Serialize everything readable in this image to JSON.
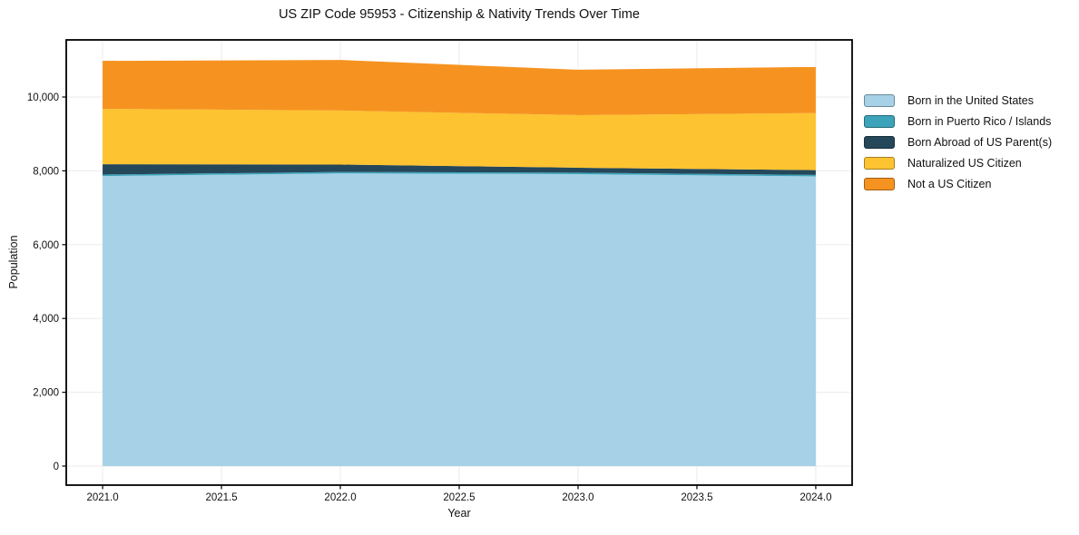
{
  "chart_data": {
    "type": "area",
    "stacked": true,
    "title": "US ZIP Code 95953 - Citizenship & Nativity Trends Over Time",
    "xlabel": "Year",
    "ylabel": "Population",
    "x": [
      2021,
      2022,
      2023,
      2024
    ],
    "series": [
      {
        "name": "Born in the United States",
        "color": "#A6D1E6",
        "values": [
          7860,
          7930,
          7910,
          7850
        ]
      },
      {
        "name": "Born in Puerto Rico / Islands",
        "color": "#3CA3BA",
        "values": [
          40,
          40,
          40,
          40
        ]
      },
      {
        "name": "Born Abroad of US Parent(s)",
        "color": "#25475A",
        "values": [
          280,
          200,
          135,
          130
        ]
      },
      {
        "name": "Naturalized US Citizen",
        "color": "#FDC330",
        "values": [
          1500,
          1465,
          1425,
          1545
        ]
      },
      {
        "name": "Not a US Citizen",
        "color": "#F69320",
        "values": [
          1300,
          1370,
          1230,
          1250
        ]
      }
    ],
    "totals": [
      10980,
      11005,
      10740,
      10815
    ],
    "xlim": [
      2020.847,
      2024.153
    ],
    "ylim": [
      -516,
      11548
    ],
    "x_ticks": [
      2021.0,
      2021.5,
      2022.0,
      2022.5,
      2023.0,
      2023.5,
      2024.0
    ],
    "x_tick_labels": [
      "2021.0",
      "2021.5",
      "2022.0",
      "2022.5",
      "2023.0",
      "2023.5",
      "2024.0"
    ],
    "y_ticks": [
      0,
      2000,
      4000,
      6000,
      8000,
      10000
    ],
    "y_tick_labels": [
      "0",
      "2,000",
      "4,000",
      "6,000",
      "8,000",
      "10,000"
    ],
    "grid": true,
    "grid_color": "#ebebeb",
    "frame_color": "#000000",
    "legend_position": "right of plot"
  }
}
